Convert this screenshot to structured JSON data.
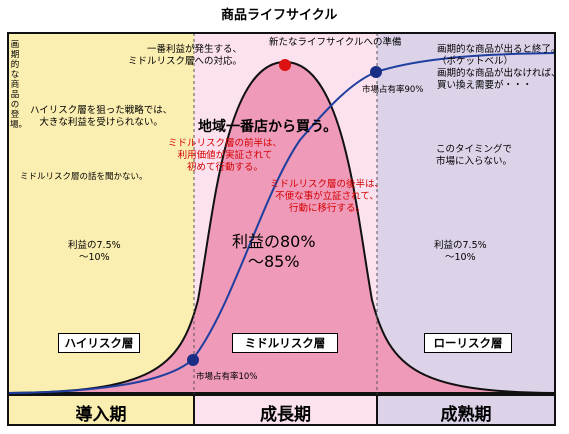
{
  "title": "商品ライフサイクル",
  "zones": {
    "intro_side": "画期的な商品の登場。",
    "high_risk_strategy": "ハイリスク層を狙った戦略では、\n大きな利益を受けられない。",
    "no_listen": "ミドルリスク層の話を聞かない。",
    "intro_profit": "利益の7.5%\n〜10%",
    "peak_note": "一番利益が発生する、\nミドルリスク層への対応。",
    "new_cycle": "新たなライフサイクルへの準備",
    "market_share_90": "市場占有率90%",
    "mature_note": "画期的な商品が出ると終了。\n（ポケットベル）\n画期的な商品が出なければ、\n買い換え需要が・・・",
    "local_store": "地域一番店から買う。",
    "early_middle": "ミドルリスク層の前半は、\n利用価値が実証されて\n初めて行動する。",
    "late_middle": "ミドルリスク層の後半は、\n不便な事が立証されて、\n行動に移行する。",
    "timing_note": "このタイミングで\n市場に入らない。",
    "middle_profit": "利益の80%\n〜85%",
    "mature_profit": "利益の7.5%\n〜10%",
    "market_share_10": "市場占有率10%"
  },
  "layers": {
    "high": "ハイリスク層",
    "middle": "ミドルリスク層",
    "low": "ローリスク層"
  },
  "phases": {
    "intro": "導入期",
    "growth": "成長期",
    "mature": "成熟期"
  },
  "colors": {
    "intro_bg": "#fbeeb1",
    "growth_bg": "#fbe2ee",
    "mature_bg": "#dcd3e9",
    "bell_fill": "#ef9ab8",
    "curve": "#1f3f9f",
    "dot_blue": "#1a2e86",
    "dot_red": "#dd1111",
    "accent_red": "#d40000"
  }
}
